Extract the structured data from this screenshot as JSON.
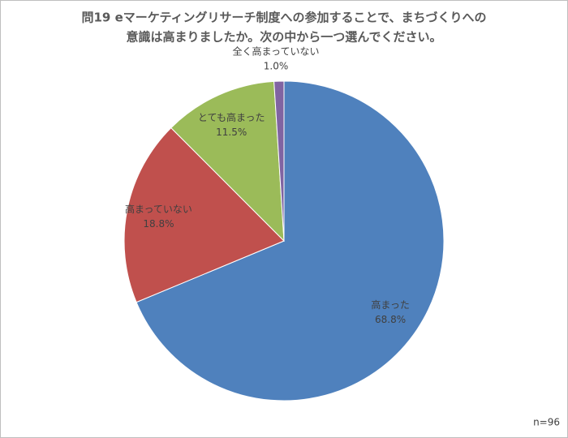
{
  "chart_data": {
    "type": "pie",
    "title": [
      "問19 eマーケティングリサーチ制度への参加することで、まちづくりへの",
      "意識は高まりましたか。次の中から一つ選んでください。"
    ],
    "categories": [
      "高まった",
      "高まっていない",
      "とても高まった",
      "全く高まっていない"
    ],
    "values": [
      68.8,
      18.8,
      11.5,
      1.0
    ],
    "value_labels": [
      "68.8%",
      "18.8%",
      "11.5%",
      "1.0%"
    ],
    "colors": [
      "#4f81bd",
      "#c0504d",
      "#9bbb59",
      "#8064a2"
    ],
    "annotation": "n=96"
  }
}
